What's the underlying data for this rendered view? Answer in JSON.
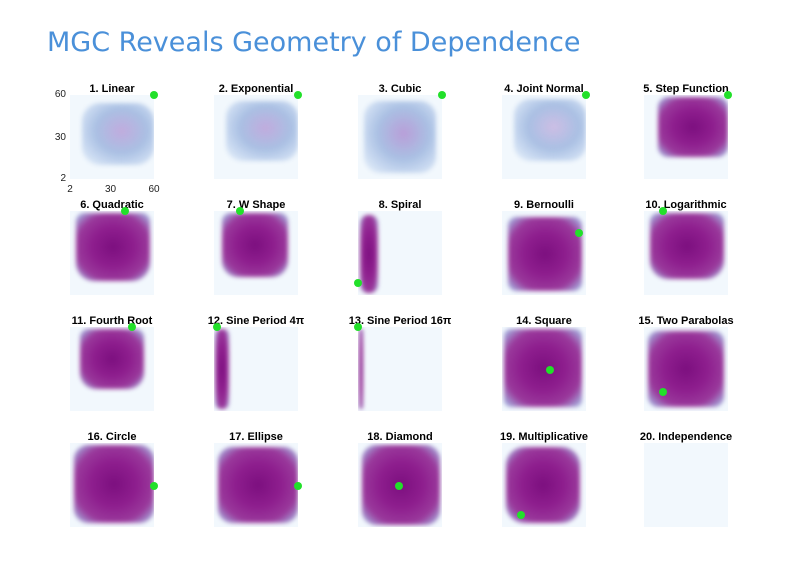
{
  "title": "MGC Reveals Geometry of Dependence",
  "colors": {
    "title": "#4a90d9",
    "background_low": "#f2f8fd",
    "mid": "#a9bfe3",
    "high": "#7c0f7f",
    "marker": "#22e02a"
  },
  "chart_data": {
    "type": "heatmap",
    "layout": "grid",
    "rows": 4,
    "cols": 5,
    "axes": {
      "x_ticks": [
        2,
        30,
        60
      ],
      "x_ticks_shown": [
        "2",
        "30",
        "60"
      ],
      "y_ticks": [
        2,
        30,
        60
      ],
      "xlim": [
        2,
        60
      ],
      "ylim": [
        2,
        60
      ],
      "ticks_shown_on_panel": 1
    },
    "panels": [
      {
        "index": 1,
        "label": "1. Linear",
        "optimal_scale": [
          60,
          60
        ],
        "intensity": 0.25
      },
      {
        "index": 2,
        "label": "2. Exponential",
        "optimal_scale": [
          60,
          60
        ],
        "intensity": 0.25
      },
      {
        "index": 3,
        "label": "3. Cubic",
        "optimal_scale": [
          60,
          60
        ],
        "intensity": 0.35
      },
      {
        "index": 4,
        "label": "4. Joint Normal",
        "optimal_scale": [
          60,
          60
        ],
        "intensity": 0.1
      },
      {
        "index": 5,
        "label": "5. Step Function",
        "optimal_scale": [
          60,
          60
        ],
        "intensity": 0.75
      },
      {
        "index": 6,
        "label": "6. Quadratic",
        "optimal_scale": [
          40,
          60
        ],
        "intensity": 0.85
      },
      {
        "index": 7,
        "label": "7. W Shape",
        "optimal_scale": [
          20,
          60
        ],
        "intensity": 0.7
      },
      {
        "index": 8,
        "label": "8. Spiral",
        "optimal_scale": [
          2,
          10
        ],
        "intensity": 0.6
      },
      {
        "index": 9,
        "label": "9. Bernoulli",
        "optimal_scale": [
          55,
          45
        ],
        "intensity": 0.9
      },
      {
        "index": 10,
        "label": "10. Logarithmic",
        "optimal_scale": [
          15,
          60
        ],
        "intensity": 0.85
      },
      {
        "index": 11,
        "label": "11. Fourth Root",
        "optimal_scale": [
          45,
          60
        ],
        "intensity": 0.85
      },
      {
        "index": 12,
        "label": "12. Sine Period 4π",
        "optimal_scale": [
          4,
          60
        ],
        "intensity": 0.8
      },
      {
        "index": 13,
        "label": "13. Sine Period 16π",
        "optimal_scale": [
          2,
          60
        ],
        "intensity": 0.8
      },
      {
        "index": 14,
        "label": "14. Square",
        "optimal_scale": [
          35,
          30
        ],
        "intensity": 0.8
      },
      {
        "index": 15,
        "label": "15. Two Parabolas",
        "optimal_scale": [
          15,
          15
        ],
        "intensity": 0.9
      },
      {
        "index": 16,
        "label": "16. Circle",
        "optimal_scale": [
          60,
          30
        ],
        "intensity": 0.8
      },
      {
        "index": 17,
        "label": "17. Ellipse",
        "optimal_scale": [
          60,
          30
        ],
        "intensity": 0.75
      },
      {
        "index": 18,
        "label": "18. Diamond",
        "optimal_scale": [
          30,
          30
        ],
        "intensity": 0.95
      },
      {
        "index": 19,
        "label": "19. Multiplicative",
        "optimal_scale": [
          15,
          10
        ],
        "intensity": 0.9
      },
      {
        "index": 20,
        "label": "20. Independence",
        "optimal_scale": null,
        "intensity": 0.0
      }
    ]
  }
}
